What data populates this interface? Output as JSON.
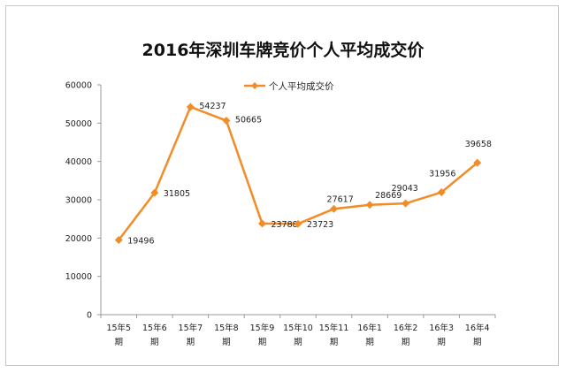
{
  "chart_data": {
    "type": "line",
    "title": "2016年深圳车牌竞价个人平均成交价",
    "categories": [
      [
        "15年5",
        "期"
      ],
      [
        "15年6",
        "期"
      ],
      [
        "15年7",
        "期"
      ],
      [
        "15年8",
        "期"
      ],
      [
        "15年9",
        "期"
      ],
      [
        "15年10",
        "期"
      ],
      [
        "15年11",
        "期"
      ],
      [
        "16年1",
        "期"
      ],
      [
        "16年2",
        "期"
      ],
      [
        "16年3",
        "期"
      ],
      [
        "16年4",
        "期"
      ]
    ],
    "series": [
      {
        "name": "个人平均成交价",
        "values": [
          19496,
          31805,
          54237,
          50665,
          23788,
          23723,
          27617,
          28669,
          29043,
          31956,
          39658
        ],
        "labels": [
          "19496",
          "31805",
          "54237",
          "50665",
          "23788",
          "23723",
          "27617",
          "28669",
          "29043",
          "31956",
          "39658"
        ]
      }
    ],
    "yticks": [
      "0",
      "10000",
      "20000",
      "30000",
      "40000",
      "50000",
      "60000"
    ],
    "ylim": [
      0,
      60000
    ],
    "grid": false,
    "legend_position": "top-center",
    "colors": {
      "series": "#F28C28",
      "axis": "#999999"
    }
  }
}
